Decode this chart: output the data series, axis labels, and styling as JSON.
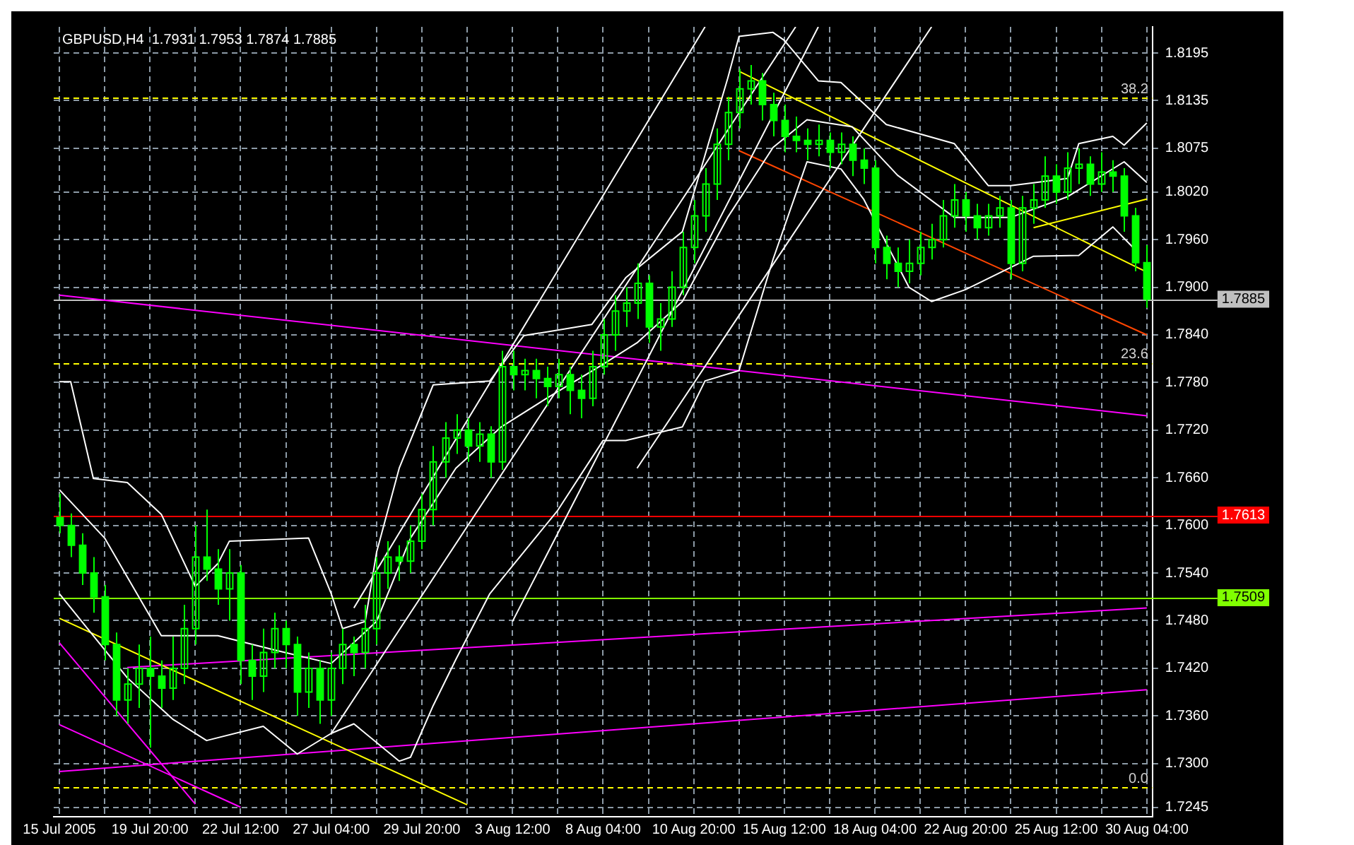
{
  "chart_data": {
    "type": "candlestick",
    "title": "GBPUSD,H4  1.7931 1.7953 1.7874 1.7885",
    "color": "#00ff00",
    "categories": [
      "15 Jul 2005",
      null,
      null,
      null,
      null,
      null,
      null,
      null,
      "19 Jul 20:00",
      null,
      null,
      null,
      null,
      null,
      null,
      null,
      "22 Jul 12:00",
      null,
      null,
      null,
      null,
      null,
      null,
      null,
      "27 Jul 04:00",
      null,
      null,
      null,
      null,
      null,
      null,
      null,
      "29 Jul 20:00",
      null,
      null,
      null,
      null,
      null,
      null,
      null,
      "3 Aug 12:00",
      null,
      null,
      null,
      null,
      null,
      null,
      null,
      "8 Aug 04:00",
      null,
      null,
      null,
      null,
      null,
      null,
      null,
      "10 Aug 20:00",
      null,
      null,
      null,
      null,
      null,
      null,
      null,
      "15 Aug 12:00",
      null,
      null,
      null,
      null,
      null,
      null,
      null,
      "18 Aug 04:00",
      null,
      null,
      null,
      null,
      null,
      null,
      null,
      "22 Aug 20:00",
      null,
      null,
      null,
      null,
      null,
      null,
      null,
      "25 Aug 12:00",
      null,
      null,
      null,
      null,
      null,
      null,
      null,
      "30 Aug 04:00"
    ],
    "ohlc": [
      [
        1.761,
        1.764,
        1.759,
        1.76
      ],
      [
        1.76,
        1.7615,
        1.756,
        1.7575
      ],
      [
        1.7575,
        1.759,
        1.7525,
        1.754
      ],
      [
        1.754,
        1.756,
        1.749,
        1.751
      ],
      [
        1.751,
        1.7525,
        1.743,
        1.745
      ],
      [
        1.745,
        1.7465,
        1.736,
        1.738
      ],
      [
        1.738,
        1.742,
        1.735,
        1.74
      ],
      [
        1.74,
        1.745,
        1.737,
        1.742
      ],
      [
        1.742,
        1.746,
        1.732,
        1.741
      ],
      [
        1.741,
        1.743,
        1.737,
        1.7395
      ],
      [
        1.7395,
        1.746,
        1.738,
        1.742
      ],
      [
        1.742,
        1.75,
        1.74,
        1.747
      ],
      [
        1.747,
        1.76,
        1.745,
        1.756
      ],
      [
        1.756,
        1.762,
        1.753,
        1.7545
      ],
      [
        1.7545,
        1.757,
        1.75,
        1.752
      ],
      [
        1.752,
        1.757,
        1.748,
        1.754
      ],
      [
        1.754,
        1.755,
        1.74,
        1.743
      ],
      [
        1.743,
        1.745,
        1.738,
        1.741
      ],
      [
        1.741,
        1.747,
        1.739,
        1.744
      ],
      [
        1.744,
        1.749,
        1.742,
        1.747
      ],
      [
        1.747,
        1.748,
        1.742,
        1.745
      ],
      [
        1.745,
        1.746,
        1.736,
        1.739
      ],
      [
        1.739,
        1.744,
        1.737,
        1.742
      ],
      [
        1.742,
        1.743,
        1.735,
        1.738
      ],
      [
        1.738,
        1.744,
        1.736,
        1.742
      ],
      [
        1.742,
        1.747,
        1.74,
        1.745
      ],
      [
        1.745,
        1.746,
        1.741,
        1.744
      ],
      [
        1.744,
        1.75,
        1.742,
        1.747
      ],
      [
        1.747,
        1.756,
        1.745,
        1.754
      ],
      [
        1.754,
        1.758,
        1.752,
        1.756
      ],
      [
        1.756,
        1.7575,
        1.753,
        1.7555
      ],
      [
        1.7555,
        1.76,
        1.754,
        1.758
      ],
      [
        1.758,
        1.764,
        1.757,
        1.762
      ],
      [
        1.762,
        1.77,
        1.76,
        1.768
      ],
      [
        1.768,
        1.773,
        1.766,
        1.771
      ],
      [
        1.771,
        1.774,
        1.769,
        1.772
      ],
      [
        1.772,
        1.7735,
        1.768,
        1.77
      ],
      [
        1.77,
        1.773,
        1.768,
        1.7715
      ],
      [
        1.7715,
        1.7725,
        1.766,
        1.768
      ],
      [
        1.768,
        1.782,
        1.767,
        1.78
      ],
      [
        1.78,
        1.782,
        1.777,
        1.779
      ],
      [
        1.779,
        1.781,
        1.777,
        1.7795
      ],
      [
        1.7795,
        1.781,
        1.776,
        1.7785
      ],
      [
        1.7785,
        1.78,
        1.775,
        1.7775
      ],
      [
        1.7775,
        1.781,
        1.776,
        1.779
      ],
      [
        1.779,
        1.78,
        1.774,
        1.777
      ],
      [
        1.777,
        1.779,
        1.7735,
        1.776
      ],
      [
        1.776,
        1.782,
        1.775,
        1.78
      ],
      [
        1.78,
        1.786,
        1.779,
        1.784
      ],
      [
        1.784,
        1.789,
        1.782,
        1.787
      ],
      [
        1.787,
        1.79,
        1.785,
        1.788
      ],
      [
        1.788,
        1.793,
        1.786,
        1.7905
      ],
      [
        1.7905,
        1.7915,
        1.783,
        1.785
      ],
      [
        1.785,
        1.788,
        1.782,
        1.786
      ],
      [
        1.786,
        1.792,
        1.785,
        1.79
      ],
      [
        1.79,
        1.797,
        1.789,
        1.795
      ],
      [
        1.795,
        1.801,
        1.793,
        1.799
      ],
      [
        1.799,
        1.805,
        1.797,
        1.803
      ],
      [
        1.803,
        1.81,
        1.801,
        1.808
      ],
      [
        1.808,
        1.814,
        1.806,
        1.812
      ],
      [
        1.812,
        1.8175,
        1.81,
        1.815
      ],
      [
        1.815,
        1.818,
        1.813,
        1.816
      ],
      [
        1.816,
        1.817,
        1.811,
        1.813
      ],
      [
        1.813,
        1.8145,
        1.809,
        1.811
      ],
      [
        1.811,
        1.813,
        1.807,
        1.809
      ],
      [
        1.809,
        1.8115,
        1.807,
        1.8085
      ],
      [
        1.8085,
        1.81,
        1.806,
        1.808
      ],
      [
        1.808,
        1.8105,
        1.8065,
        1.8085
      ],
      [
        1.8085,
        1.8095,
        1.805,
        1.807
      ],
      [
        1.807,
        1.8095,
        1.8055,
        1.808
      ],
      [
        1.808,
        1.809,
        1.804,
        1.806
      ],
      [
        1.806,
        1.8075,
        1.803,
        1.805
      ],
      [
        1.805,
        1.806,
        1.793,
        1.795
      ],
      [
        1.795,
        1.7965,
        1.791,
        1.793
      ],
      [
        1.793,
        1.795,
        1.79,
        1.792
      ],
      [
        1.792,
        1.796,
        1.7905,
        1.793
      ],
      [
        1.793,
        1.797,
        1.7915,
        1.795
      ],
      [
        1.795,
        1.798,
        1.7935,
        1.796
      ],
      [
        1.796,
        1.801,
        1.795,
        1.799
      ],
      [
        1.799,
        1.803,
        1.7975,
        1.801
      ],
      [
        1.801,
        1.802,
        1.797,
        1.799
      ],
      [
        1.799,
        1.8005,
        1.796,
        1.7975
      ],
      [
        1.7975,
        1.8005,
        1.7965,
        1.799
      ],
      [
        1.799,
        1.8015,
        1.7975,
        1.8
      ],
      [
        1.8,
        1.801,
        1.791,
        1.793
      ],
      [
        1.793,
        1.8015,
        1.792,
        1.8
      ],
      [
        1.8,
        1.803,
        1.798,
        1.801
      ],
      [
        1.801,
        1.8065,
        1.8,
        1.804
      ],
      [
        1.804,
        1.8055,
        1.8005,
        1.802
      ],
      [
        1.802,
        1.807,
        1.801,
        1.805
      ],
      [
        1.805,
        1.8075,
        1.803,
        1.8055
      ],
      [
        1.8055,
        1.8065,
        1.8015,
        1.803
      ],
      [
        1.803,
        1.807,
        1.802,
        1.8045
      ],
      [
        1.8045,
        1.806,
        1.802,
        1.804
      ],
      [
        1.804,
        1.805,
        1.797,
        1.799
      ],
      [
        1.799,
        1.8,
        1.792,
        1.7931
      ],
      [
        1.7931,
        1.7953,
        1.7874,
        1.7885
      ]
    ],
    "series": [
      {
        "type": "line",
        "color": "#ffffff",
        "values": [
          1.7781,
          1.7781,
          null,
          1.7659,
          null,
          null,
          1.7654,
          null,
          null,
          1.7614,
          null,
          null,
          1.7523,
          null,
          1.7552,
          1.758,
          null,
          null,
          null,
          null,
          null,
          null,
          1.7584,
          null,
          1.7514,
          1.747,
          null,
          1.7479,
          1.7566,
          null,
          1.7672,
          null,
          null,
          1.7777,
          null,
          null,
          null,
          null,
          1.7782,
          null,
          null,
          1.7839,
          null,
          null,
          null,
          null,
          null,
          1.7853,
          null,
          null,
          1.7912,
          null,
          null,
          null,
          null,
          1.797,
          null,
          null,
          null,
          1.8163,
          1.8216,
          null,
          null,
          1.8221,
          1.8211,
          null,
          null,
          1.816,
          null,
          1.8158,
          null,
          null,
          null,
          1.8105,
          null,
          null,
          null,
          null,
          null,
          1.8081,
          null,
          null,
          1.8028,
          null,
          1.8028,
          null,
          null,
          null,
          null,
          1.8037,
          1.8081,
          null,
          null,
          1.809,
          1.8079,
          null,
          1.8107
        ]
      },
      {
        "type": "line",
        "color": "#ffffff",
        "values": [
          1.7645,
          null,
          null,
          null,
          1.7584,
          null,
          null,
          null,
          null,
          1.7461,
          null,
          null,
          null,
          null,
          1.7461,
          null,
          null,
          null,
          null,
          1.7443,
          null,
          null,
          null,
          null,
          1.7426,
          null,
          null,
          null,
          1.7479,
          null,
          null,
          1.7584,
          null,
          null,
          null,
          1.7672,
          null,
          null,
          null,
          1.7724,
          null,
          null,
          null,
          1.776,
          null,
          null,
          null,
          null,
          1.7803,
          null,
          null,
          1.783,
          null,
          null,
          null,
          1.7882,
          null,
          null,
          null,
          1.7988,
          null,
          null,
          null,
          1.8076,
          null,
          null,
          1.8111,
          null,
          null,
          null,
          1.8102,
          null,
          null,
          null,
          1.8041,
          null,
          null,
          null,
          null,
          1.7988,
          null,
          null,
          null,
          null,
          1.7988,
          null,
          null,
          null,
          null,
          1.8014,
          null,
          null,
          null,
          null,
          1.8058,
          null,
          1.8032
        ]
      },
      {
        "type": "line",
        "color": "#ffffff",
        "values": [
          1.7514,
          null,
          null,
          1.7461,
          null,
          null,
          1.7408,
          null,
          null,
          null,
          1.7356,
          null,
          null,
          1.7329,
          null,
          null,
          null,
          null,
          1.7347,
          null,
          null,
          1.7312,
          null,
          null,
          1.7338,
          null,
          1.735,
          null,
          null,
          null,
          1.7303,
          1.7308,
          null,
          1.7373,
          null,
          1.7431,
          null,
          null,
          1.7514,
          null,
          null,
          null,
          null,
          null,
          1.7619,
          null,
          null,
          null,
          1.7707,
          null,
          1.7707,
          null,
          null,
          null,
          null,
          1.7724,
          null,
          1.7782,
          null,
          null,
          1.7795,
          null,
          null,
          1.7935,
          null,
          null,
          1.8058,
          null,
          null,
          1.8049,
          null,
          1.8011,
          null,
          null,
          null,
          1.79,
          null,
          1.7882,
          null,
          null,
          1.7897,
          null,
          null,
          null,
          null,
          null,
          1.7939,
          null,
          null,
          null,
          1.794,
          null,
          null,
          1.7976,
          null,
          1.7947,
          null
        ]
      },
      {
        "type": "line",
        "color": "#ffffff",
        "values": [
          null,
          null,
          null,
          null,
          null,
          null,
          null,
          null,
          null,
          null,
          null,
          null,
          null,
          null,
          null,
          null,
          null,
          null,
          null,
          null,
          null,
          null,
          null,
          null,
          null,
          null,
          1.7496,
          null,
          null,
          null,
          null,
          null,
          null,
          null,
          null,
          null,
          null,
          null,
          null,
          null,
          null,
          null,
          null,
          null,
          null,
          null,
          null,
          null,
          null,
          null,
          null,
          null,
          null,
          null,
          null,
          null,
          null,
          1.8228,
          null,
          null,
          null,
          null,
          null,
          null,
          null,
          null,
          null,
          null,
          null,
          null,
          null,
          null,
          null,
          null,
          null,
          null,
          null,
          null,
          null,
          null,
          null,
          null,
          null,
          null,
          null,
          null,
          null,
          null,
          null,
          null,
          null,
          null,
          null,
          null,
          null,
          null,
          null
        ]
      },
      {
        "type": "line",
        "color": "#ffffff",
        "values": [
          null,
          null,
          null,
          null,
          null,
          null,
          null,
          null,
          null,
          null,
          null,
          null,
          null,
          null,
          null,
          null,
          null,
          null,
          null,
          null,
          null,
          null,
          null,
          null,
          1.7338,
          null,
          null,
          null,
          null,
          null,
          null,
          null,
          null,
          null,
          null,
          null,
          null,
          null,
          null,
          null,
          null,
          null,
          null,
          null,
          null,
          null,
          null,
          null,
          null,
          null,
          null,
          null,
          null,
          null,
          null,
          null,
          null,
          null,
          null,
          null,
          null,
          null,
          null,
          null,
          null,
          1.8228,
          null,
          null,
          null,
          null,
          null,
          null,
          null,
          null,
          null,
          null,
          null,
          null,
          null,
          null,
          null,
          null,
          null,
          null,
          null,
          null,
          null,
          null,
          null,
          null,
          null,
          null,
          null,
          null,
          null,
          null,
          null
        ]
      },
      {
        "type": "line",
        "color": "#ffffff",
        "values": [
          null,
          null,
          null,
          null,
          null,
          null,
          null,
          null,
          null,
          null,
          null,
          null,
          null,
          null,
          null,
          null,
          null,
          null,
          null,
          null,
          null,
          null,
          null,
          null,
          null,
          null,
          null,
          null,
          null,
          null,
          null,
          null,
          null,
          null,
          null,
          null,
          null,
          null,
          null,
          null,
          null,
          null,
          null,
          null,
          null,
          null,
          null,
          null,
          null,
          null,
          null,
          1.7672,
          null,
          null,
          null,
          null,
          null,
          null,
          null,
          null,
          null,
          null,
          null,
          null,
          null,
          null,
          null,
          null,
          null,
          null,
          null,
          null,
          null,
          null,
          null,
          null,
          null,
          1.8228,
          null,
          null,
          null,
          null,
          null,
          null,
          null,
          null,
          null,
          null,
          null,
          null,
          null,
          null,
          null,
          null,
          null,
          null,
          null
        ]
      },
      {
        "type": "line",
        "color": "#ffffff",
        "values": [
          null,
          null,
          null,
          null,
          null,
          null,
          null,
          null,
          null,
          null,
          null,
          null,
          null,
          null,
          null,
          null,
          null,
          null,
          null,
          null,
          null,
          null,
          null,
          null,
          null,
          null,
          null,
          null,
          null,
          null,
          null,
          null,
          null,
          null,
          null,
          null,
          null,
          null,
          null,
          null,
          1.7479,
          null,
          null,
          null,
          null,
          null,
          null,
          null,
          null,
          null,
          null,
          null,
          null,
          null,
          null,
          null,
          null,
          null,
          null,
          null,
          null,
          null,
          null,
          null,
          null,
          null,
          null,
          1.8228,
          null,
          null,
          null,
          null,
          null,
          null,
          null,
          null,
          null,
          null,
          null,
          null,
          null,
          null,
          null,
          null,
          null,
          null,
          null,
          null,
          null,
          null,
          null,
          null,
          null,
          null,
          null,
          null,
          null
        ]
      },
      {
        "type": "line",
        "color": "#ffff00",
        "values": [
          null,
          null,
          null,
          null,
          null,
          null,
          null,
          null,
          null,
          null,
          null,
          null,
          null,
          null,
          null,
          null,
          null,
          null,
          null,
          null,
          null,
          null,
          null,
          null,
          null,
          null,
          null,
          null,
          null,
          null,
          null,
          null,
          null,
          null,
          null,
          null,
          null,
          null,
          null,
          null,
          null,
          null,
          null,
          null,
          null,
          null,
          null,
          null,
          null,
          null,
          null,
          null,
          null,
          null,
          null,
          null,
          null,
          null,
          null,
          null,
          1.8172,
          null,
          null,
          null,
          null,
          null,
          null,
          null,
          null,
          null,
          null,
          null,
          null,
          null,
          null,
          null,
          null,
          null,
          null,
          null,
          null,
          null,
          null,
          null,
          null,
          null,
          null,
          null,
          null,
          null,
          null,
          null,
          null,
          null,
          null,
          null,
          1.7919
        ]
      },
      {
        "type": "line",
        "color": "#ffff00",
        "values": [
          null,
          null,
          null,
          null,
          null,
          null,
          null,
          null,
          null,
          null,
          null,
          null,
          null,
          null,
          null,
          null,
          null,
          null,
          null,
          null,
          null,
          null,
          null,
          null,
          null,
          null,
          null,
          null,
          null,
          null,
          null,
          null,
          null,
          null,
          null,
          null,
          null,
          null,
          null,
          null,
          null,
          null,
          null,
          null,
          null,
          null,
          null,
          null,
          null,
          null,
          null,
          null,
          null,
          null,
          null,
          null,
          null,
          null,
          null,
          null,
          null,
          null,
          null,
          null,
          null,
          null,
          null,
          null,
          null,
          null,
          null,
          null,
          null,
          null,
          null,
          null,
          null,
          null,
          null,
          null,
          null,
          null,
          null,
          null,
          null,
          null,
          1.7975,
          null,
          null,
          null,
          null,
          null,
          null,
          null,
          null,
          null,
          1.8011
        ]
      },
      {
        "type": "line",
        "color": "#ff4500",
        "values": [
          null,
          null,
          null,
          null,
          null,
          null,
          null,
          null,
          null,
          null,
          null,
          null,
          null,
          null,
          null,
          null,
          null,
          null,
          null,
          null,
          null,
          null,
          null,
          null,
          null,
          null,
          null,
          null,
          null,
          null,
          null,
          null,
          null,
          null,
          null,
          null,
          null,
          null,
          null,
          null,
          null,
          null,
          null,
          null,
          null,
          null,
          null,
          null,
          null,
          null,
          null,
          null,
          null,
          null,
          null,
          null,
          null,
          null,
          null,
          null,
          1.8072,
          null,
          null,
          null,
          null,
          null,
          null,
          null,
          null,
          null,
          null,
          null,
          null,
          null,
          null,
          null,
          null,
          null,
          null,
          null,
          null,
          null,
          null,
          null,
          null,
          null,
          null,
          null,
          null,
          null,
          null,
          null,
          null,
          null,
          null,
          null,
          1.784
        ]
      },
      {
        "type": "line",
        "color": "#ffff00",
        "values": [
          1.7483,
          null,
          null,
          null,
          null,
          null,
          null,
          null,
          null,
          null,
          null,
          null,
          null,
          null,
          null,
          null,
          null,
          null,
          null,
          null,
          null,
          null,
          null,
          null,
          null,
          null,
          null,
          null,
          null,
          null,
          null,
          null,
          null,
          null,
          null,
          null,
          1.7248,
          null,
          null,
          null,
          null,
          null,
          null,
          null,
          null,
          null,
          null,
          null,
          null,
          null,
          null,
          null,
          null,
          null,
          null,
          null,
          null,
          null,
          null,
          null,
          null,
          null,
          null,
          null,
          null,
          null,
          null,
          null,
          null,
          null,
          null,
          null,
          null,
          null,
          null,
          null,
          null,
          null,
          null,
          null,
          null,
          null,
          null,
          null,
          null,
          null,
          null,
          null,
          null,
          null,
          null,
          null,
          null,
          null,
          null,
          null,
          null
        ]
      },
      {
        "type": "line",
        "color": "#ff00ff",
        "values": [
          1.789,
          null,
          null,
          null,
          null,
          null,
          null,
          null,
          null,
          null,
          null,
          null,
          null,
          null,
          null,
          null,
          null,
          null,
          null,
          null,
          null,
          null,
          null,
          null,
          null,
          null,
          null,
          null,
          null,
          null,
          null,
          null,
          null,
          null,
          null,
          null,
          null,
          null,
          null,
          null,
          null,
          null,
          null,
          null,
          null,
          null,
          null,
          null,
          null,
          null,
          null,
          null,
          null,
          null,
          null,
          null,
          null,
          null,
          null,
          null,
          null,
          null,
          null,
          null,
          null,
          null,
          null,
          null,
          null,
          null,
          null,
          null,
          null,
          null,
          null,
          null,
          null,
          null,
          null,
          null,
          null,
          null,
          null,
          null,
          null,
          null,
          null,
          null,
          null,
          null,
          null,
          null,
          null,
          null,
          null,
          null,
          1.7738
        ]
      },
      {
        "type": "line",
        "color": "#ff00ff",
        "values": [
          1.729,
          null,
          null,
          null,
          null,
          null,
          null,
          null,
          null,
          null,
          null,
          null,
          null,
          null,
          null,
          null,
          null,
          null,
          null,
          null,
          null,
          null,
          null,
          null,
          null,
          null,
          null,
          null,
          null,
          null,
          null,
          null,
          null,
          null,
          null,
          null,
          null,
          null,
          null,
          null,
          null,
          null,
          null,
          null,
          null,
          null,
          null,
          null,
          null,
          null,
          null,
          null,
          null,
          null,
          null,
          null,
          null,
          null,
          null,
          null,
          null,
          null,
          null,
          null,
          null,
          null,
          null,
          null,
          null,
          null,
          null,
          null,
          null,
          null,
          null,
          null,
          null,
          null,
          null,
          null,
          null,
          null,
          null,
          null,
          null,
          null,
          null,
          null,
          null,
          null,
          null,
          null,
          null,
          null,
          null,
          null,
          1.7393
        ]
      },
      {
        "type": "line",
        "color": "#ff00ff",
        "values": [
          null,
          null,
          null,
          null,
          null,
          null,
          1.7421,
          null,
          null,
          null,
          null,
          null,
          null,
          null,
          null,
          null,
          null,
          null,
          null,
          null,
          null,
          null,
          null,
          null,
          null,
          null,
          null,
          null,
          null,
          null,
          null,
          null,
          null,
          null,
          null,
          null,
          null,
          null,
          null,
          null,
          null,
          null,
          null,
          null,
          null,
          null,
          null,
          null,
          null,
          null,
          null,
          null,
          null,
          null,
          null,
          null,
          null,
          null,
          null,
          null,
          null,
          null,
          null,
          null,
          null,
          null,
          null,
          null,
          null,
          null,
          null,
          null,
          null,
          null,
          null,
          null,
          null,
          null,
          null,
          null,
          null,
          null,
          null,
          null,
          null,
          null,
          null,
          null,
          null,
          null,
          null,
          null,
          null,
          null,
          null,
          null,
          1.7496
        ]
      },
      {
        "type": "line",
        "color": "#ff00ff",
        "values": [
          1.7452,
          null,
          null,
          null,
          null,
          null,
          null,
          null,
          null,
          null,
          null,
          null,
          1.7249,
          null,
          null,
          null,
          null,
          null,
          null,
          null,
          null,
          null,
          null,
          null,
          null,
          null,
          null,
          null,
          null,
          null,
          null,
          null,
          null,
          null,
          null,
          null,
          null,
          null,
          null,
          null,
          null,
          null,
          null,
          null,
          null,
          null,
          null,
          null,
          null,
          null,
          null,
          null,
          null,
          null,
          null,
          null,
          null,
          null,
          null,
          null,
          null,
          null,
          null,
          null,
          null,
          null,
          null,
          null,
          null,
          null,
          null,
          null,
          null,
          null,
          null,
          null,
          null,
          null,
          null,
          null,
          null,
          null,
          null,
          null,
          null,
          null,
          null,
          null,
          null,
          null,
          null,
          null,
          null,
          null,
          null,
          null,
          null
        ]
      },
      {
        "type": "line",
        "color": "#ff00ff",
        "values": [
          1.7349,
          null,
          null,
          null,
          null,
          null,
          null,
          null,
          null,
          null,
          null,
          null,
          null,
          null,
          null,
          null,
          1.7245,
          null,
          null,
          null,
          null,
          null,
          null,
          null,
          null,
          null,
          null,
          null,
          null,
          null,
          null,
          null,
          null,
          null,
          null,
          null,
          null,
          null,
          null,
          null,
          null,
          null,
          null,
          null,
          null,
          null,
          null,
          null,
          null,
          null,
          null,
          null,
          null,
          null,
          null,
          null,
          null,
          null,
          null,
          null,
          null,
          null,
          null,
          null,
          null,
          null,
          null,
          null,
          null,
          null,
          null,
          null,
          null,
          null,
          null,
          null,
          null,
          null,
          null,
          null,
          null,
          null,
          null,
          null,
          null,
          null,
          null,
          null,
          null,
          null,
          null,
          null,
          null,
          null,
          null,
          null,
          null
        ]
      }
    ],
    "ref_lines": [
      {
        "axis": "y",
        "value": 1.8139,
        "color": "#ffff00",
        "line_style": "dashed"
      },
      {
        "axis": "y",
        "value": 1.7805,
        "color": "#ffff00",
        "line_style": "dashed"
      },
      {
        "axis": "y",
        "value": 1.727,
        "color": "#ffff00",
        "line_style": "dashed"
      },
      {
        "axis": "y",
        "value": 1.7885,
        "label": "1.7885",
        "color": "#c0c0c0",
        "line_style": "solid"
      },
      {
        "axis": "y",
        "value": 1.7613,
        "label": "1.7613",
        "color": "#ff0000",
        "line_style": "solid"
      },
      {
        "axis": "y",
        "value": 1.7509,
        "label": "1.7509",
        "color": "#80ff00",
        "line_style": "solid"
      }
    ],
    "annotations": [
      {
        "text": "38.2",
        "y": 1.8139
      },
      {
        "text": "23.6",
        "y": 1.7805
      },
      {
        "text": "0.0",
        "y": 1.727
      }
    ],
    "ylim": [
      1.7233,
      1.8228
    ],
    "yticks": [
      1.8195,
      1.8135,
      1.8075,
      {
        "value": 1.802,
        "label": "1.8020"
      },
      {
        "value": 1.796,
        "label": "1.7960"
      },
      {
        "value": 1.79,
        "label": "1.7900"
      },
      {
        "value": 1.784,
        "label": "1.7840"
      },
      {
        "value": 1.778,
        "label": "1.7780"
      },
      {
        "value": 1.772,
        "label": "1.7720"
      },
      {
        "value": 1.766,
        "label": "1.7660"
      },
      {
        "value": 1.76,
        "label": "1.7600"
      },
      {
        "value": 1.754,
        "label": "1.7540"
      },
      {
        "value": 1.748,
        "label": "1.7480"
      },
      {
        "value": 1.742,
        "label": "1.7420"
      },
      {
        "value": 1.736,
        "label": "1.7360"
      },
      {
        "value": 1.73,
        "label": "1.7300"
      },
      1.7245
    ],
    "grid": true,
    "legend": false
  }
}
